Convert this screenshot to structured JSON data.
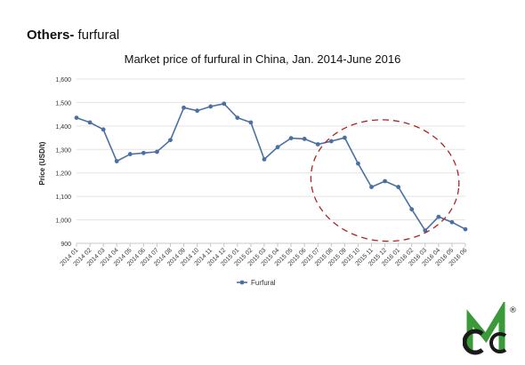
{
  "heading": {
    "bold": "Others-",
    "rest": " furfural"
  },
  "chart_data": {
    "type": "line",
    "title": "Market price of furfural in China, Jan. 2014-June 2016",
    "xlabel": "",
    "ylabel": "Price (USD/t)",
    "ylim": [
      900,
      1600
    ],
    "yticks": [
      "900",
      "1,000",
      "1,100",
      "1,200",
      "1,300",
      "1,400",
      "1,500",
      "1,600"
    ],
    "grid": "horizontal",
    "legend": "bottom-center",
    "categories": [
      "2014 01",
      "2014 02",
      "2014 03",
      "2014 04",
      "2014 05",
      "2014 06",
      "2014 07",
      "2014 08",
      "2014 09",
      "2014 10",
      "2014 11",
      "2014 12",
      "2015 01",
      "2015 02",
      "2015 03",
      "2015 04",
      "2015 05",
      "2015 06",
      "2015 07",
      "2015 08",
      "2015 09",
      "2015 10",
      "2015 11",
      "2015 12",
      "2016 01",
      "2016 02",
      "2016 03",
      "2016 04",
      "2016 05",
      "2016 06"
    ],
    "series": [
      {
        "name": "Furfural",
        "color": "#4a6fa5",
        "values": [
          1435,
          1415,
          1385,
          1250,
          1280,
          1285,
          1290,
          1340,
          1478,
          1465,
          1483,
          1495,
          1435,
          1415,
          1258,
          1310,
          1348,
          1345,
          1322,
          1335,
          1350,
          1240,
          1140,
          1165,
          1140,
          1045,
          955,
          1013,
          990,
          960
        ]
      }
    ],
    "annotation": {
      "shape": "dashed-ellipse",
      "color": "#b22222",
      "from_category": "2015 07",
      "to_category": "2016 05"
    }
  },
  "logo": {
    "letters": "GC",
    "mark": "®",
    "colors": [
      "#3a9a3a",
      "#1a1a1a"
    ]
  }
}
